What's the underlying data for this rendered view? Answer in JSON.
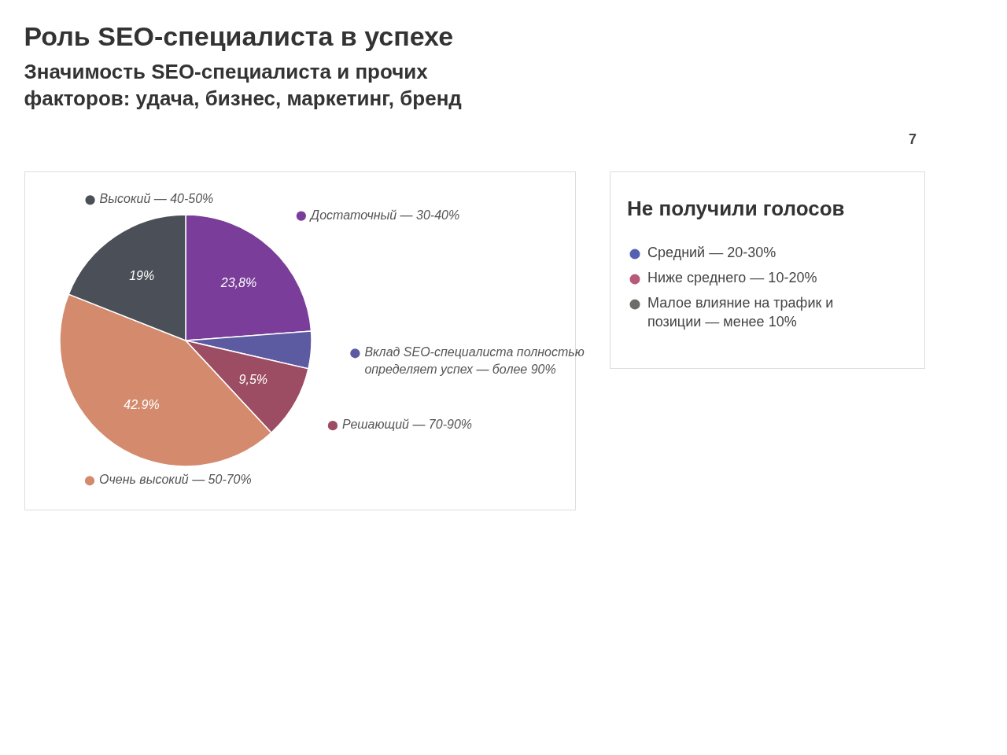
{
  "chart_data": [
    {
      "type": "pie",
      "title": "Роль SEO-специалиста в успехе",
      "subtitle": "Значимость SEO-специалиста и прочих факторов: удача, бизнес, маркетинг, бренд",
      "categories": [
        "Достаточный — 30-40%",
        "Вклад SEO-специалиста полностью определяет успех — более 90%",
        "Решающий — 70-90%",
        "Очень высокий — 50-70%",
        "Высокий — 40-50%"
      ],
      "values": [
        23.8,
        4.8,
        9.5,
        42.9,
        19
      ],
      "value_labels": [
        "23,8%",
        null,
        "9,5%",
        "42.9%",
        "19%"
      ],
      "colors": [
        "#7a3d9a",
        "#5c5aa0",
        "#9c4d63",
        "#d48a6d",
        "#4b4f57"
      ],
      "legend": "right"
    },
    {
      "type": "other",
      "title": "Не получили голосов",
      "categories": [
        "Средний — 20-30%",
        "Ниже среднего — 10-20%",
        "Малое влияние на трафик и позиции — менее 10%"
      ],
      "colors": [
        "#5560b0",
        "#b85a7a",
        "#6b6e68"
      ],
      "annotations": [
        "7"
      ]
    }
  ]
}
